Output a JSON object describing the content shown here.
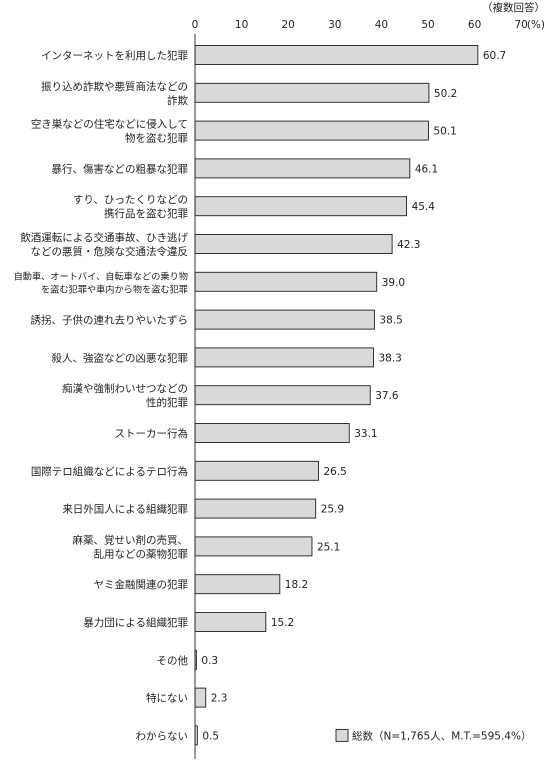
{
  "chart_data": {
    "type": "bar",
    "orientation": "horizontal",
    "note": "（複数回答）",
    "unit": "(%)",
    "xlim": [
      0,
      70
    ],
    "ticks": [
      "0",
      "10",
      "20",
      "30",
      "40",
      "50",
      "60",
      "70"
    ],
    "categories": [
      [
        "インターネットを利用した犯罪"
      ],
      [
        "振り込め詐欺や悪質商法などの",
        "詐欺"
      ],
      [
        "空き巣などの住宅などに侵入して",
        "物を盗む犯罪"
      ],
      [
        "暴行、傷害などの粗暴な犯罪"
      ],
      [
        "すり、ひったくりなどの",
        "携行品を盗む犯罪"
      ],
      [
        "飲酒運転による交通事故、ひき逃げ",
        "などの悪質・危険な交通法令違反"
      ],
      [
        "自動車、オートバイ、自転車などの乗り物",
        "を盗む犯罪や車内から物を盗む犯罪"
      ],
      [
        "誘拐、子供の連れ去りやいたずら"
      ],
      [
        "殺人、強盗などの凶悪な犯罪"
      ],
      [
        "痴漢や強制わいせつなどの",
        "性的犯罪"
      ],
      [
        "ストーカー行為"
      ],
      [
        "国際テロ組織などによるテロ行為"
      ],
      [
        "来日外国人による組織犯罪"
      ],
      [
        "麻薬、覚せい剤の売買、",
        "乱用などの薬物犯罪"
      ],
      [
        "ヤミ金融関連の犯罪"
      ],
      [
        "暴力団による組織犯罪"
      ],
      [
        "その他"
      ],
      [
        "特にない"
      ],
      [
        "わからない"
      ]
    ],
    "value_labels": [
      "60.7",
      "50.2",
      "50.1",
      "46.1",
      "45.4",
      "42.3",
      "39.0",
      "38.5",
      "38.3",
      "37.6",
      "33.1",
      "26.5",
      "25.9",
      "25.1",
      "18.2",
      "15.2",
      "0.3",
      "2.3",
      "0.5"
    ],
    "series": [
      {
        "name": "総数（N=1,765人、M.T.=595.4%）",
        "values": [
          60.7,
          50.2,
          50.1,
          46.1,
          45.4,
          42.3,
          39.0,
          38.5,
          38.3,
          37.6,
          33.1,
          26.5,
          25.9,
          25.1,
          18.2,
          15.2,
          0.3,
          2.3,
          0.5
        ]
      }
    ],
    "legend_position": "bottom-right",
    "bar_color": "#d9d9d9"
  }
}
